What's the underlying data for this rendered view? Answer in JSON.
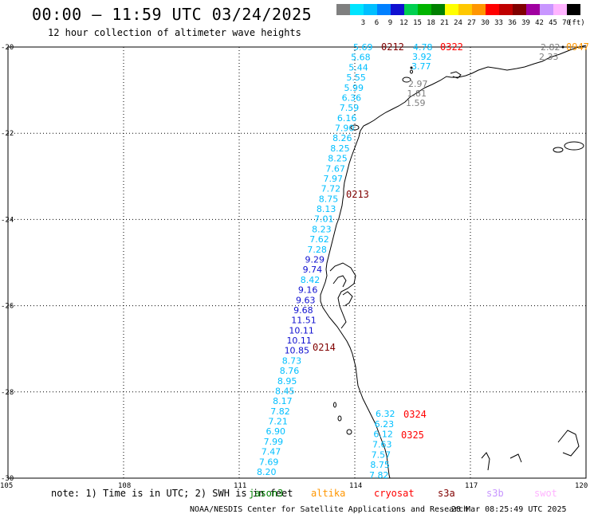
{
  "header": {
    "title": "00:00 – 11:59 UTC 03/24/2025",
    "subtitle": "12 hour collection of altimeter wave heights"
  },
  "legend": {
    "unit": "(ft)",
    "items": [
      {
        "color": "#7f7f7f",
        "label": ""
      },
      {
        "color": "#00e4ff",
        "label": "3"
      },
      {
        "color": "#00bfff",
        "label": "6"
      },
      {
        "color": "#0080ff",
        "label": "9"
      },
      {
        "color": "#1010d0",
        "label": "12"
      },
      {
        "color": "#00d050",
        "label": "15"
      },
      {
        "color": "#00b400",
        "label": "18"
      },
      {
        "color": "#008000",
        "label": "21"
      },
      {
        "color": "#ffff00",
        "label": "24"
      },
      {
        "color": "#ffc800",
        "label": "27"
      },
      {
        "color": "#ff9600",
        "label": "30"
      },
      {
        "color": "#ff0000",
        "label": "33"
      },
      {
        "color": "#c00000",
        "label": "36"
      },
      {
        "color": "#800000",
        "label": "39"
      },
      {
        "color": "#a000a0",
        "label": "42"
      },
      {
        "color": "#c896ff",
        "label": "45"
      },
      {
        "color": "#ffb4ff",
        "label": "70"
      },
      {
        "color": "#000000",
        "label": ""
      }
    ]
  },
  "axes": {
    "lat_labels": [
      "-20",
      "-22",
      "-24",
      "-26",
      "-28",
      "-30"
    ],
    "lon_labels": [
      "105",
      "108",
      "111",
      "114",
      "117",
      "120"
    ]
  },
  "passes": [
    {
      "label": "0212",
      "color": "#800000"
    },
    {
      "label": "0322",
      "color": "#ff0000"
    },
    {
      "label": "0213",
      "color": "#800000"
    },
    {
      "label": "0214",
      "color": "#800000"
    },
    {
      "label": "0324",
      "color": "#ff0000"
    },
    {
      "label": "0325",
      "color": "#ff0000"
    },
    {
      "label": "0947",
      "color": "#ff9600"
    }
  ],
  "tracks": {
    "west": {
      "values": [
        "5.69",
        "5.68",
        "5.44",
        "5.55",
        "5.99",
        "6.36",
        "7.59",
        "6.16",
        "7.90",
        "8.26",
        "8.25",
        "8.25",
        "7.67",
        "7.97",
        "7.72",
        "8.75",
        "8.13",
        "7.01",
        "8.23",
        "7.62",
        "7.28",
        "9.29",
        "9.74",
        "8.42",
        "9.16",
        "9.63",
        "9.68",
        "11.51",
        "10.11",
        "10.11",
        "10.85",
        "8.73",
        "8.76",
        "8.95",
        "8.45",
        "8.17",
        "7.82",
        "7.21",
        "6.90",
        "7.99",
        "7.47",
        "7.69",
        "8.20"
      ],
      "colors": [
        "c",
        "c",
        "c",
        "c",
        "c",
        "c",
        "c",
        "c",
        "c",
        "c",
        "c",
        "c",
        "c",
        "c",
        "c",
        "c",
        "c",
        "c",
        "c",
        "c",
        "c",
        "b",
        "b",
        "c",
        "b",
        "b",
        "b",
        "b",
        "b",
        "b",
        "b",
        "c",
        "c",
        "c",
        "c",
        "c",
        "c",
        "c",
        "c",
        "c",
        "c",
        "c",
        "c"
      ]
    },
    "cryo_north": {
      "values": [
        "4.78",
        "3.92",
        "3.77"
      ]
    },
    "grey_short": {
      "values": [
        "2.97",
        "1.81",
        "1.59"
      ]
    },
    "grey_ne": {
      "values": [
        "2.82",
        "2.33"
      ]
    },
    "south": {
      "values": [
        "6.32",
        "6.23",
        "6.12",
        "7.63",
        "7.57",
        "8.75",
        "7.82"
      ]
    }
  },
  "note": "note: 1) Time is in UTC; 2) SWH is in feet",
  "satellites": [
    {
      "label": "jason3",
      "color": "#008000"
    },
    {
      "label": "altika",
      "color": "#ff9600"
    },
    {
      "label": "cryosat",
      "color": "#ff0000"
    },
    {
      "label": "s3a",
      "color": "#800000"
    },
    {
      "label": "s3b",
      "color": "#c896ff"
    },
    {
      "label": "swot",
      "color": "#ffb4ff"
    }
  ],
  "credit": "NOAA/NESDIS Center for Satellite Applications and Research",
  "timestamp": "28 Mar 08:25:49 UTC 2025",
  "colors": {
    "cyan": "#00bfff",
    "blue": "#1010d0",
    "grey": "#7f7f7f"
  }
}
